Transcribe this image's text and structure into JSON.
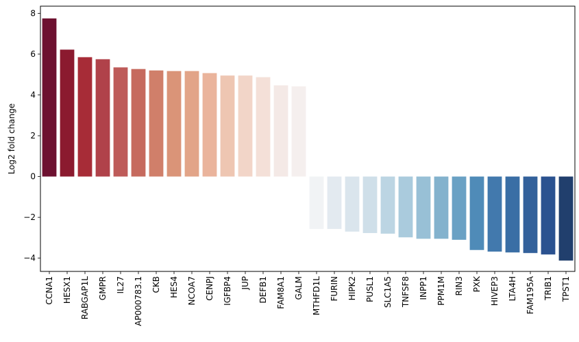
{
  "chart_data": {
    "type": "bar",
    "title": "",
    "xlabel": "",
    "ylabel": "Log2 fold change",
    "ylim": [
      -4.65,
      8.35
    ],
    "yticks": [
      -4,
      -2,
      0,
      2,
      4,
      6,
      8
    ],
    "ytick_labels": [
      "−4",
      "−2",
      "0",
      "2",
      "4",
      "6",
      "8"
    ],
    "grid": false,
    "legend": "none",
    "categories": [
      "CCNA1",
      "HESX1",
      "RABGAP1L",
      "GMPR",
      "IL27",
      "AP000783.1",
      "CKB",
      "HES4",
      "NCOA7",
      "CENPJ",
      "IGFBP4",
      "JUP",
      "DEFB1",
      "FAM8A1",
      "GALM",
      "MTHFD1L",
      "FURIN",
      "HIPK2",
      "PUSL1",
      "SLC1A5",
      "TNFSF8",
      "INPP1",
      "PPM1M",
      "RIN3",
      "PXK",
      "HIVEP3",
      "LTA4H",
      "FAM195A",
      "TRIB1",
      "TPST1"
    ],
    "values": [
      7.75,
      6.22,
      5.85,
      5.75,
      5.35,
      5.27,
      5.2,
      5.17,
      5.17,
      5.07,
      4.95,
      4.95,
      4.87,
      4.47,
      4.42,
      -2.57,
      -2.57,
      -2.7,
      -2.77,
      -2.8,
      -2.98,
      -3.05,
      -3.05,
      -3.1,
      -3.6,
      -3.68,
      -3.72,
      -3.75,
      -3.82,
      -4.12
    ],
    "colors": [
      "#6d1130",
      "#8b1a2f",
      "#a72c37",
      "#b0424a",
      "#be5b59",
      "#c66a5e",
      "#d07f6a",
      "#da9478",
      "#e2a488",
      "#eab49c",
      "#eec6b2",
      "#f2d5c8",
      "#f4e0d8",
      "#f4e9e6",
      "#f5efee",
      "#f1f3f5",
      "#e3eaf0",
      "#dae5ed",
      "#cfdfe9",
      "#bcd5e3",
      "#aacbdd",
      "#98c0d6",
      "#83b2cd",
      "#6aa1c4",
      "#4f8bb8",
      "#4279ad",
      "#3a6ea5",
      "#33619b",
      "#2b5290",
      "#213f6d"
    ]
  }
}
